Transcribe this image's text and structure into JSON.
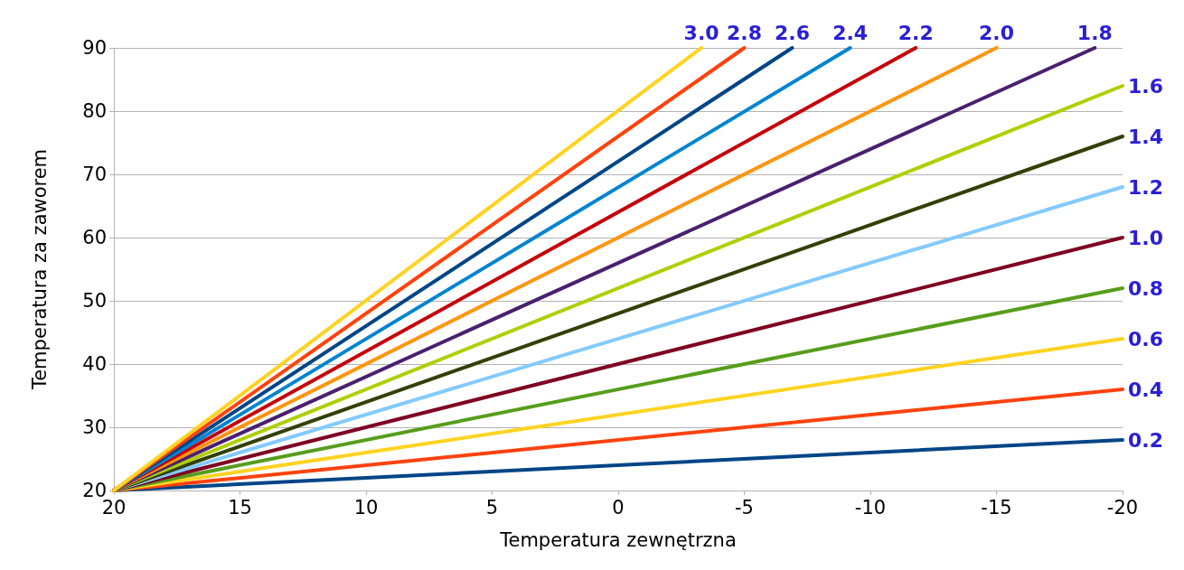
{
  "chart_data": {
    "type": "line",
    "xlabel": "Temperatura zewnętrzna",
    "ylabel": "Temperatura za zaworem",
    "xlim": [
      20,
      -20
    ],
    "xticks": [
      20,
      15,
      10,
      5,
      0,
      -5,
      -10,
      -15,
      -20
    ],
    "ylim": [
      20,
      90
    ],
    "yticks": [
      20,
      30,
      40,
      50,
      60,
      70,
      80,
      90
    ],
    "grid": "y",
    "legend": false,
    "marker": "none",
    "line_style": "solid",
    "series": [
      {
        "name": "0.2",
        "color": "#004586",
        "x": [
          20,
          -20
        ],
        "values": [
          20,
          28
        ]
      },
      {
        "name": "0.4",
        "color": "#ff420e",
        "x": [
          20,
          -20
        ],
        "values": [
          20,
          36
        ]
      },
      {
        "name": "0.6",
        "color": "#ffd320",
        "x": [
          20,
          -20
        ],
        "values": [
          20,
          44
        ]
      },
      {
        "name": "0.8",
        "color": "#579d1c",
        "x": [
          20,
          -20
        ],
        "values": [
          20,
          52
        ]
      },
      {
        "name": "1.0",
        "color": "#7e0021",
        "x": [
          20,
          -20
        ],
        "values": [
          20,
          60
        ]
      },
      {
        "name": "1.2",
        "color": "#83caff",
        "x": [
          20,
          -20
        ],
        "values": [
          20,
          68
        ]
      },
      {
        "name": "1.4",
        "color": "#314004",
        "x": [
          20,
          -20
        ],
        "values": [
          20,
          76
        ]
      },
      {
        "name": "1.6",
        "color": "#aecf00",
        "x": [
          20,
          -20
        ],
        "values": [
          20,
          84
        ]
      },
      {
        "name": "1.8",
        "color": "#4b1f6f",
        "x": [
          20,
          -18.9
        ],
        "values": [
          20,
          90
        ]
      },
      {
        "name": "2.0",
        "color": "#ff950e",
        "x": [
          20,
          -15
        ],
        "values": [
          20,
          90
        ]
      },
      {
        "name": "2.2",
        "color": "#c5000b",
        "x": [
          20,
          -11.8
        ],
        "values": [
          20,
          90
        ]
      },
      {
        "name": "2.4",
        "color": "#0084d1",
        "x": [
          20,
          -9.2
        ],
        "values": [
          20,
          90
        ]
      },
      {
        "name": "2.6",
        "color": "#004586",
        "x": [
          20,
          -6.9
        ],
        "values": [
          20,
          90
        ]
      },
      {
        "name": "2.8",
        "color": "#ff420e",
        "x": [
          20,
          -5
        ],
        "values": [
          20,
          90
        ]
      },
      {
        "name": "3.0",
        "color": "#ffd320",
        "x": [
          20,
          -3.3
        ],
        "values": [
          20,
          90
        ]
      }
    ]
  }
}
